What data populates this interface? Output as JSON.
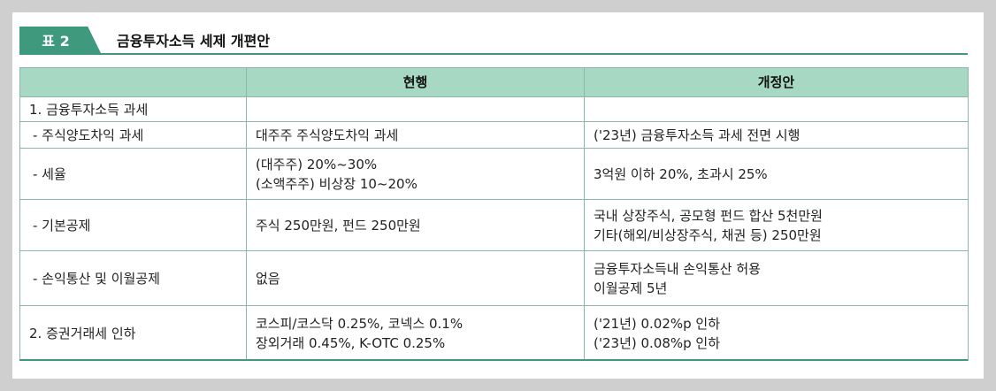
{
  "title": {
    "tag": "표 2",
    "text": "금융투자소득 세제 개편안"
  },
  "table": {
    "headers": [
      "",
      "현행",
      "개정안"
    ],
    "rows": [
      {
        "item": "1. 금융투자소득 과세",
        "current": [],
        "proposed": []
      },
      {
        "item": "- 주식양도차익 과세",
        "current": [
          "대주주 주식양도차익 과세"
        ],
        "proposed": [
          "('23년) 금융투자소득 과세 전면 시행"
        ]
      },
      {
        "item": "- 세율",
        "current": [
          "(대주주) 20%~30%",
          "(소액주주) 비상장 10~20%"
        ],
        "proposed": [
          "3억원 이하 20%, 초과시 25%"
        ]
      },
      {
        "item": "- 기본공제",
        "current": [
          "주식 250만원, 펀드 250만원"
        ],
        "proposed": [
          "국내 상장주식, 공모형 펀드 합산 5천만원",
          "기타(해외/비상장주식, 채권 등) 250만원"
        ]
      },
      {
        "item": "- 손익통산 및 이월공제",
        "current": [
          "없음"
        ],
        "proposed": [
          "금융투자소득내 손익통산 허용",
          "이월공제 5년"
        ]
      },
      {
        "item": "2. 증권거래세 인하",
        "current": [
          "코스피/코스닥 0.25%, 코넥스 0.1%",
          "장외거래 0.45%, K-OTC 0.25%"
        ],
        "proposed": [
          "('21년) 0.02%p 인하",
          "('23년) 0.08%p 인하"
        ]
      }
    ]
  }
}
